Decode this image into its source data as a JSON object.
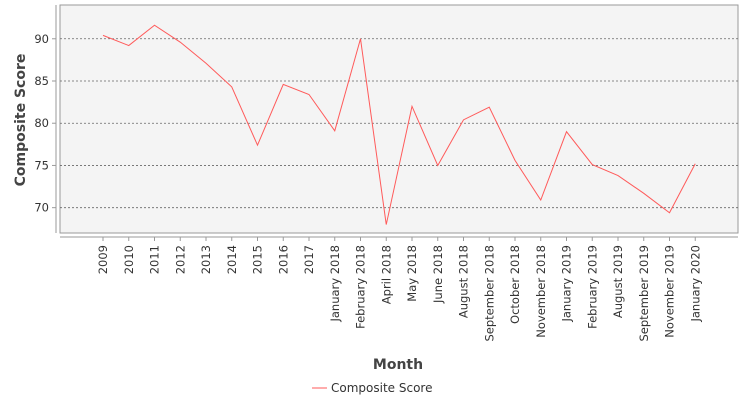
{
  "chart_data": {
    "type": "line",
    "title": "",
    "xlabel": "Month",
    "ylabel": "Composite Score",
    "ylim": [
      67,
      94
    ],
    "yticks": [
      70,
      75,
      80,
      85,
      90
    ],
    "grid": true,
    "legend_position": "bottom-center",
    "categories": [
      "2009",
      "2010",
      "2011",
      "2012",
      "2013",
      "2014",
      "2015",
      "2016",
      "2017",
      "January 2018",
      "February 2018",
      "April 2018",
      "May 2018",
      "June 2018",
      "August 2018",
      "September 2018",
      "October 2018",
      "November 2018",
      "January 2019",
      "February 2019",
      "August 2019",
      "September 2019",
      "November 2019",
      "January 2020"
    ],
    "series": [
      {
        "name": "Composite Score",
        "color": "#ff5a5a",
        "values": [
          90.4,
          89.2,
          91.6,
          89.6,
          87.1,
          84.3,
          77.4,
          84.6,
          83.4,
          79.1,
          90.0,
          68.0,
          82.0,
          75.0,
          80.4,
          81.9,
          75.6,
          70.9,
          79.0,
          75.1,
          73.8,
          71.7,
          69.4,
          75.2
        ]
      }
    ]
  }
}
